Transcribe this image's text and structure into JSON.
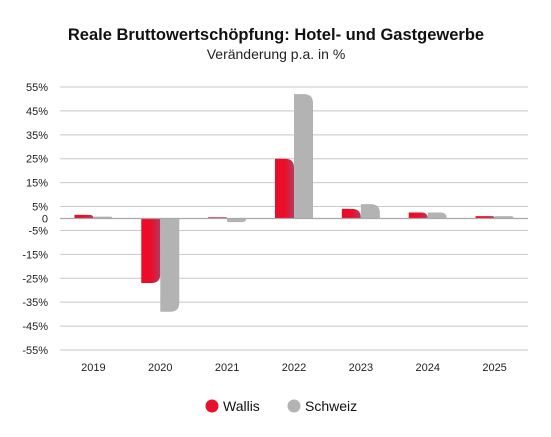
{
  "chart_data": {
    "type": "bar",
    "title": "Reale Bruttowertschöpfung: Hotel- und Gastgewerbe",
    "subtitle": "Veränderung p.a. in %",
    "categories": [
      "2019",
      "2020",
      "2021",
      "2022",
      "2023",
      "2024",
      "2025"
    ],
    "series": [
      {
        "name": "Wallis",
        "color": "#e8102c",
        "values": [
          1.5,
          -27,
          0.5,
          25,
          4,
          2.5,
          1
        ]
      },
      {
        "name": "Schweiz",
        "color": "#b3b3b3",
        "values": [
          0.8,
          -39,
          -1.5,
          52,
          6,
          2.5,
          1
        ]
      }
    ],
    "y_ticks": [
      "55%",
      "45%",
      "35%",
      "25%",
      "15%",
      "5%",
      "0",
      "-5%",
      "-15%",
      "-25%",
      "-35%",
      "-45%",
      "-55%"
    ],
    "y_tick_values": [
      55,
      45,
      35,
      25,
      15,
      5,
      0,
      -5,
      -15,
      -25,
      -35,
      -45,
      -55
    ],
    "ylim": [
      -55,
      55
    ],
    "grid": true,
    "legend_position": "bottom"
  }
}
